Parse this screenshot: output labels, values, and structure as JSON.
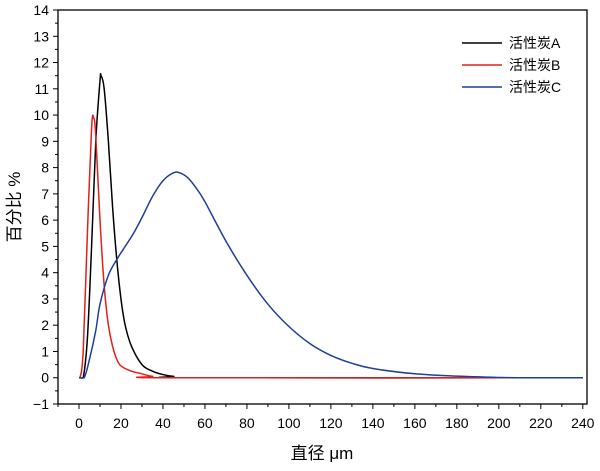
{
  "chart_data": {
    "type": "line",
    "title": "",
    "xlabel": "直径 μm",
    "ylabel": "百分比 %",
    "xlim": [
      -10,
      242
    ],
    "ylim": [
      -1,
      14
    ],
    "xticks": [
      0,
      20,
      40,
      60,
      80,
      100,
      120,
      140,
      160,
      180,
      200,
      220,
      240
    ],
    "yticks": [
      -1,
      0,
      1,
      2,
      3,
      4,
      5,
      6,
      7,
      8,
      9,
      10,
      11,
      12,
      13,
      14
    ],
    "grid": false,
    "legend_position": "top-right",
    "series": [
      {
        "name": "活性炭A",
        "color": "#000000",
        "points": [
          [
            0,
            0
          ],
          [
            2,
            0
          ],
          [
            4,
            1.5
          ],
          [
            6,
            5
          ],
          [
            8,
            9
          ],
          [
            10,
            11.3
          ],
          [
            10.5,
            11.5
          ],
          [
            12,
            11
          ],
          [
            14,
            9
          ],
          [
            16,
            6.5
          ],
          [
            18,
            4.5
          ],
          [
            20,
            3.0
          ],
          [
            22,
            2.0
          ],
          [
            25,
            1.2
          ],
          [
            30,
            0.5
          ],
          [
            35,
            0.25
          ],
          [
            40,
            0.12
          ],
          [
            45,
            0.05
          ],
          [
            55,
            0
          ],
          [
            240,
            0
          ]
        ]
      },
      {
        "name": "活性炭B",
        "color": "#e0201c",
        "points": [
          [
            0,
            0
          ],
          [
            0.5,
            0
          ],
          [
            2,
            1
          ],
          [
            4,
            5.5
          ],
          [
            6,
            9.5
          ],
          [
            7,
            9.9
          ],
          [
            8,
            9.2
          ],
          [
            10,
            6
          ],
          [
            12,
            3.5
          ],
          [
            14,
            2
          ],
          [
            16,
            1.2
          ],
          [
            18,
            0.7
          ],
          [
            20,
            0.45
          ],
          [
            25,
            0.25
          ],
          [
            30,
            0.15
          ],
          [
            35,
            0.05
          ],
          [
            45,
            0
          ],
          [
            240,
            0
          ]
        ]
      },
      {
        "name": "活性炭C",
        "color": "#1f3f9a",
        "points": [
          [
            0,
            0
          ],
          [
            2.5,
            0
          ],
          [
            5,
            0.7
          ],
          [
            8,
            1.8
          ],
          [
            10,
            2.8
          ],
          [
            14,
            3.9
          ],
          [
            18,
            4.5
          ],
          [
            22,
            5
          ],
          [
            26,
            5.5
          ],
          [
            30,
            6.1
          ],
          [
            35,
            6.9
          ],
          [
            40,
            7.5
          ],
          [
            45,
            7.8
          ],
          [
            48,
            7.8
          ],
          [
            52,
            7.6
          ],
          [
            56,
            7.2
          ],
          [
            60,
            6.7
          ],
          [
            70,
            5.2
          ],
          [
            80,
            3.9
          ],
          [
            90,
            2.8
          ],
          [
            100,
            1.95
          ],
          [
            110,
            1.3
          ],
          [
            120,
            0.85
          ],
          [
            130,
            0.55
          ],
          [
            140,
            0.35
          ],
          [
            160,
            0.15
          ],
          [
            180,
            0.06
          ],
          [
            200,
            0.01
          ],
          [
            210,
            0
          ],
          [
            240,
            0
          ]
        ]
      }
    ]
  }
}
